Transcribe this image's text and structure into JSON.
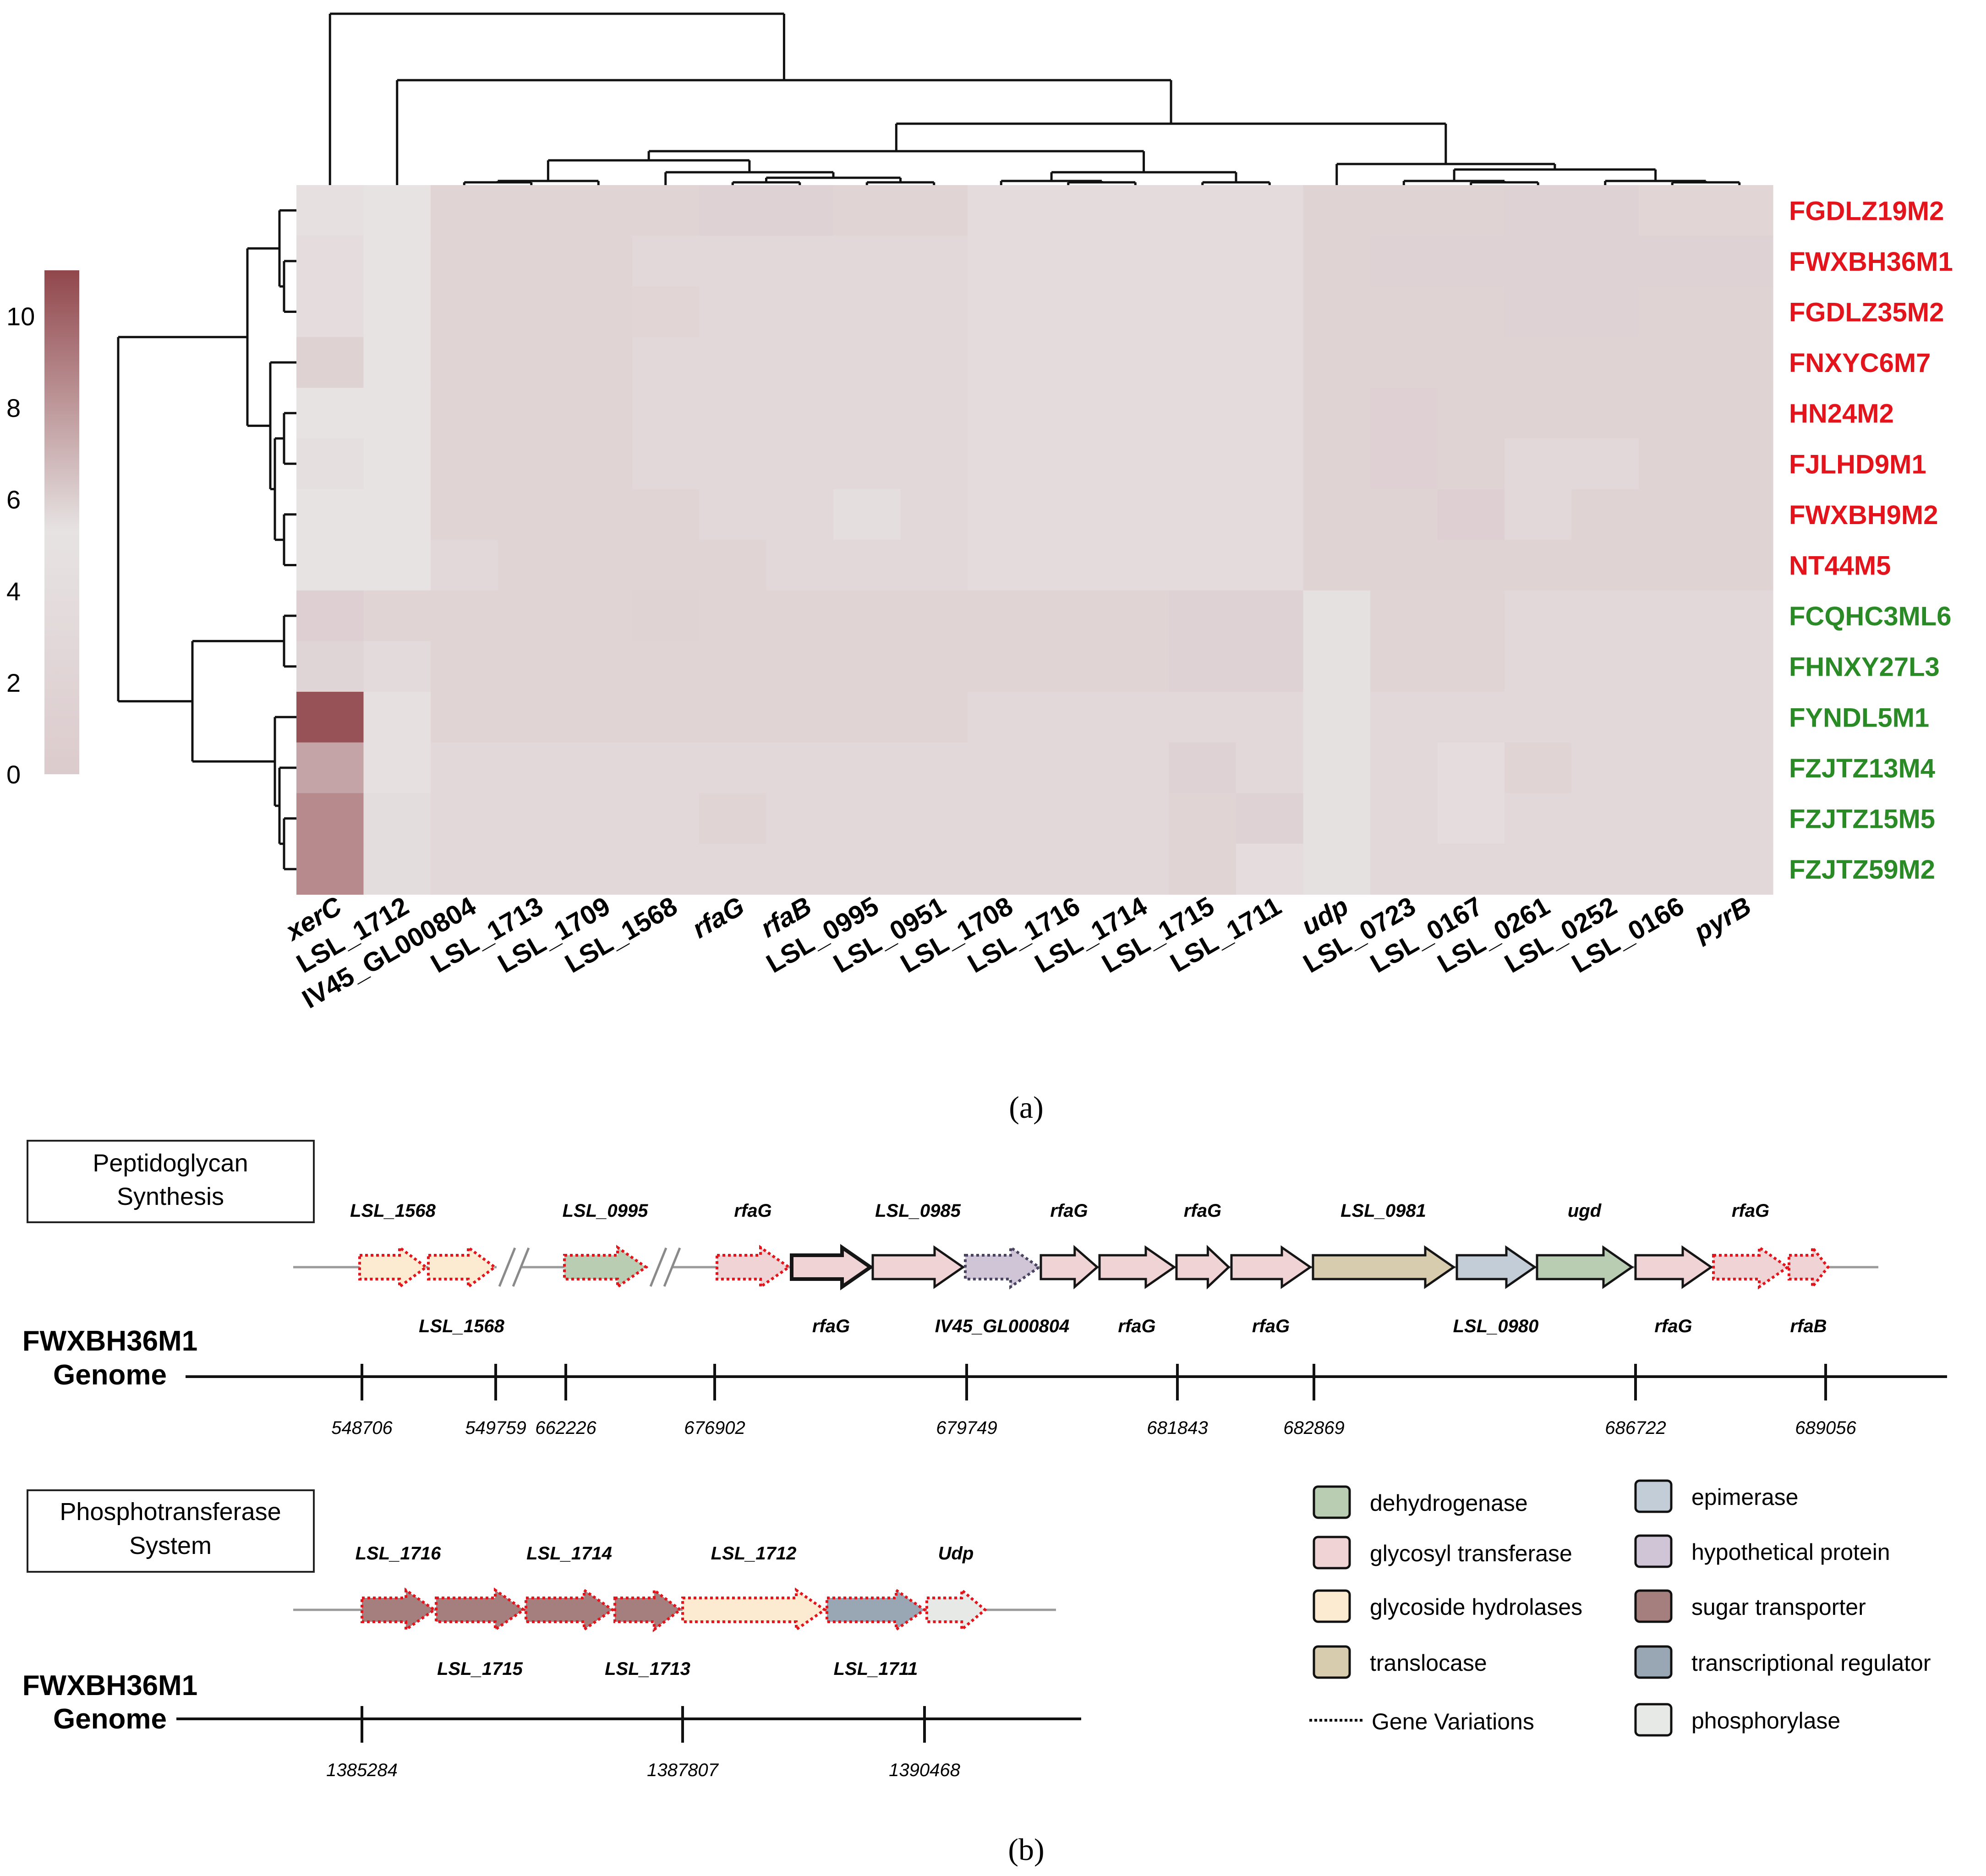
{
  "panel_a": {
    "caption": "(a)",
    "colorscale": {
      "ticks": [
        "10",
        "8",
        "6",
        "4",
        "2",
        "0"
      ],
      "tick_values": [
        10,
        8,
        6,
        4,
        2,
        0
      ],
      "range": [
        0,
        11
      ],
      "colors": [
        "#dccbcd",
        "#e7e3e3",
        "#91474c"
      ]
    },
    "columns": [
      "xerC",
      "LSL_1712",
      "IV45_GL000804",
      "LSL_1713",
      "LSL_1709",
      "LSL_1568",
      "rfaG",
      "rfaB",
      "LSL_0995",
      "LSL_0951",
      "LSL_1708",
      "LSL_1716",
      "LSL_1714",
      "LSL_1715",
      "LSL_1711",
      "udp",
      "LSL_0723",
      "LSL_0167",
      "LSL_0261",
      "LSL_0252",
      "LSL_0166",
      "pyrB"
    ],
    "rows": [
      {
        "label": "FGDLZ19M2",
        "group": "red"
      },
      {
        "label": "FWXBH36M1",
        "group": "red"
      },
      {
        "label": "FGDLZ35M2",
        "group": "red"
      },
      {
        "label": "FNXYC6M7",
        "group": "red"
      },
      {
        "label": "HN24M2",
        "group": "red"
      },
      {
        "label": "FJLHD9M1",
        "group": "red"
      },
      {
        "label": "FWXBH9M2",
        "group": "red"
      },
      {
        "label": "NT44M5",
        "group": "red"
      },
      {
        "label": "FCQHC3ML6",
        "group": "green"
      },
      {
        "label": "FHNXY27L3",
        "group": "green"
      },
      {
        "label": "FYNDL5M1",
        "group": "green"
      },
      {
        "label": "FZJTZ13M4",
        "group": "green"
      },
      {
        "label": "FZJTZ15M5",
        "group": "green"
      },
      {
        "label": "FZJTZ59M2",
        "group": "green"
      }
    ],
    "group_colors": {
      "red": "#e3141b",
      "green": "#2a8a25"
    },
    "values": [
      [
        4.6,
        5.3,
        2.0,
        2.0,
        2.0,
        2.0,
        1.6,
        1.6,
        2.0,
        2.0,
        3.5,
        3.5,
        3.5,
        3.5,
        3.5,
        1.8,
        1.8,
        1.8,
        1.6,
        1.6,
        2.2,
        2.2
      ],
      [
        3.8,
        5.3,
        2.0,
        2.0,
        2.0,
        2.8,
        2.8,
        2.8,
        2.8,
        2.8,
        3.5,
        3.5,
        3.5,
        3.5,
        3.5,
        1.8,
        1.6,
        1.6,
        1.6,
        1.6,
        1.6,
        1.6
      ],
      [
        3.8,
        5.3,
        2.0,
        2.0,
        2.0,
        2.2,
        2.8,
        2.8,
        2.8,
        2.8,
        3.5,
        3.5,
        3.5,
        3.5,
        3.5,
        1.8,
        1.8,
        1.8,
        1.6,
        1.6,
        1.8,
        1.8
      ],
      [
        1.5,
        5.3,
        2.0,
        2.0,
        2.0,
        2.8,
        2.8,
        2.8,
        2.8,
        2.8,
        3.5,
        3.5,
        3.5,
        3.5,
        3.5,
        1.8,
        1.8,
        1.8,
        1.8,
        1.8,
        1.8,
        1.8
      ],
      [
        5.3,
        5.3,
        2.0,
        2.0,
        2.0,
        2.8,
        2.8,
        2.8,
        2.8,
        2.8,
        3.5,
        3.5,
        3.5,
        3.5,
        3.5,
        1.8,
        1.4,
        1.8,
        1.8,
        1.8,
        1.8,
        1.8
      ],
      [
        4.4,
        5.3,
        2.0,
        2.0,
        2.0,
        2.8,
        2.8,
        2.8,
        2.8,
        2.8,
        3.5,
        3.5,
        3.5,
        3.5,
        3.5,
        1.8,
        1.4,
        1.8,
        2.8,
        2.8,
        1.8,
        1.8
      ],
      [
        5.3,
        5.3,
        2.0,
        2.0,
        2.0,
        2.0,
        2.8,
        2.8,
        4.1,
        2.8,
        3.5,
        3.5,
        3.5,
        3.5,
        3.5,
        1.8,
        1.8,
        1.2,
        2.8,
        1.8,
        1.8,
        1.8
      ],
      [
        5.3,
        5.3,
        2.8,
        2.0,
        2.0,
        2.0,
        2.0,
        2.8,
        2.8,
        2.8,
        3.5,
        3.5,
        3.5,
        3.5,
        3.5,
        1.8,
        1.8,
        1.8,
        1.8,
        1.8,
        1.8,
        1.8
      ],
      [
        1.2,
        2.0,
        2.0,
        2.0,
        2.0,
        1.8,
        2.0,
        2.0,
        2.0,
        2.0,
        2.0,
        2.0,
        2.0,
        1.6,
        1.6,
        4.8,
        2.0,
        2.0,
        2.8,
        2.8,
        2.8,
        2.8
      ],
      [
        5.8,
        3.4,
        2.0,
        2.0,
        2.0,
        2.0,
        2.0,
        2.0,
        2.0,
        2.0,
        2.0,
        2.0,
        2.0,
        1.6,
        1.6,
        4.8,
        2.0,
        2.0,
        2.8,
        2.8,
        2.8,
        2.8
      ],
      [
        10.6,
        4.7,
        2.0,
        2.0,
        2.0,
        2.0,
        2.0,
        2.0,
        2.0,
        2.0,
        2.8,
        2.8,
        2.8,
        2.8,
        2.8,
        4.8,
        2.8,
        2.8,
        2.8,
        2.8,
        2.8,
        2.8
      ],
      [
        7.6,
        4.7,
        2.8,
        2.8,
        2.8,
        2.8,
        2.8,
        2.8,
        2.8,
        2.8,
        2.8,
        2.8,
        2.8,
        1.6,
        2.8,
        4.8,
        2.8,
        3.8,
        2.0,
        2.8,
        2.8,
        2.8
      ],
      [
        8.5,
        4.0,
        2.8,
        2.8,
        2.8,
        2.8,
        2.0,
        2.8,
        2.8,
        2.8,
        2.8,
        2.8,
        2.8,
        2.0,
        1.6,
        4.8,
        2.8,
        3.8,
        2.8,
        2.8,
        2.8,
        2.8
      ],
      [
        8.5,
        4.0,
        2.8,
        2.8,
        2.8,
        2.8,
        2.8,
        2.8,
        2.8,
        2.8,
        2.8,
        2.8,
        2.8,
        2.0,
        3.8,
        4.8,
        2.8,
        2.8,
        2.8,
        2.8,
        2.8,
        2.8
      ]
    ]
  },
  "panel_b": {
    "caption": "(b)",
    "peptidoglycan": {
      "title_line1": "Peptidoglycan",
      "title_line2": "Synthesis",
      "genome_line1": "FWXBH36M1",
      "genome_line2": "Genome",
      "genes": [
        {
          "name": "LSL_1568",
          "label": "LSL_1568",
          "label_pos": "top",
          "category": "glycoside hydrolases",
          "variant": true
        },
        {
          "name": "LSL_1568",
          "label": "LSL_1568",
          "label_pos": "bottom",
          "category": "glycoside hydrolases",
          "variant": true
        },
        {
          "name": "LSL_0995",
          "label": "LSL_0995",
          "label_pos": "top",
          "category": "dehydrogenase",
          "variant": true
        },
        {
          "name": "rfaG",
          "label": "rfaG",
          "label_pos": "top",
          "category": "glycosyl transferase",
          "variant": true
        },
        {
          "name": "rfaG",
          "label": "rfaG",
          "label_pos": "bottom",
          "category": "glycosyl transferase",
          "variant": false,
          "thick": true
        },
        {
          "name": "LSL_0985",
          "label": "LSL_0985",
          "label_pos": "top",
          "category": "glycosyl transferase",
          "variant": false
        },
        {
          "name": "IV45_GL000804",
          "label": "IV45_GL000804",
          "label_pos": "bottom",
          "category": "hypothetical protein",
          "variant": true,
          "dark_dots": true
        },
        {
          "name": "rfaG",
          "label": "rfaG",
          "label_pos": "top",
          "category": "glycosyl transferase",
          "variant": false
        },
        {
          "name": "rfaG",
          "label": "rfaG",
          "label_pos": "bottom",
          "category": "glycosyl transferase",
          "variant": false
        },
        {
          "name": "rfaG",
          "label": "rfaG",
          "label_pos": "top",
          "category": "glycosyl transferase",
          "variant": false
        },
        {
          "name": "rfaG",
          "label": "rfaG",
          "label_pos": "bottom",
          "category": "glycosyl transferase",
          "variant": false
        },
        {
          "name": "LSL_0981",
          "label": "LSL_0981",
          "label_pos": "top",
          "category": "translocase",
          "variant": false
        },
        {
          "name": "LSL_0980",
          "label": "LSL_0980",
          "label_pos": "bottom",
          "category": "epimerase",
          "variant": false
        },
        {
          "name": "ugd",
          "label": "ugd",
          "label_pos": "top",
          "category": "dehydrogenase",
          "variant": false
        },
        {
          "name": "rfaG",
          "label": "rfaG",
          "label_pos": "bottom",
          "category": "glycosyl transferase",
          "variant": false
        },
        {
          "name": "rfaG",
          "label": "rfaG",
          "label_pos": "top",
          "category": "glycosyl transferase",
          "variant": true
        },
        {
          "name": "rfaB",
          "label": "rfaB",
          "label_pos": "bottom",
          "category": "glycosyl transferase",
          "variant": true
        }
      ],
      "ticks": [
        "548706",
        "549759",
        "662226",
        "676902",
        "679749",
        "681843",
        "682869",
        "686722",
        "689056"
      ]
    },
    "pts": {
      "title_line1": "Phosphotransferase",
      "title_line2": "System",
      "genome_line1": "FWXBH36M1",
      "genome_line2": "Genome",
      "genes": [
        {
          "name": "LSL_1716",
          "label": "LSL_1716",
          "label_pos": "top",
          "category": "sugar transporter",
          "variant": true
        },
        {
          "name": "LSL_1715",
          "label": "LSL_1715",
          "label_pos": "bottom",
          "category": "sugar transporter",
          "variant": true
        },
        {
          "name": "LSL_1714",
          "label": "LSL_1714",
          "label_pos": "top",
          "category": "sugar transporter",
          "variant": true
        },
        {
          "name": "LSL_1713",
          "label": "LSL_1713",
          "label_pos": "bottom",
          "category": "sugar transporter",
          "variant": true
        },
        {
          "name": "LSL_1712",
          "label": "LSL_1712",
          "label_pos": "top",
          "category": "glycoside hydrolases",
          "variant": true
        },
        {
          "name": "LSL_1711",
          "label": "LSL_1711",
          "label_pos": "bottom",
          "category": "transcriptional regulator",
          "variant": true
        },
        {
          "name": "Udp",
          "label": "Udp",
          "label_pos": "top",
          "category": "phosphorylase",
          "variant": true
        }
      ],
      "ticks": [
        "1385284",
        "1387807",
        "1390468"
      ]
    },
    "legend": {
      "items": [
        {
          "label": "dehydrogenase",
          "color": "#b9cdb3"
        },
        {
          "label": "epimerase",
          "color": "#c2cdd8"
        },
        {
          "label": "glycosyl transferase",
          "color": "#efd3d5"
        },
        {
          "label": "hypothetical protein",
          "color": "#cfc5d7"
        },
        {
          "label": "glycoside hydrolases",
          "color": "#fdebd1"
        },
        {
          "label": "sugar transporter",
          "color": "#a57e7e"
        },
        {
          "label": "translocase",
          "color": "#d8ccae"
        },
        {
          "label": "transcriptional regulator",
          "color": "#99a6b3"
        },
        {
          "label": "phosphorylase",
          "color": "#e6e9e5"
        }
      ],
      "variation_label": "Gene Variations"
    }
  }
}
